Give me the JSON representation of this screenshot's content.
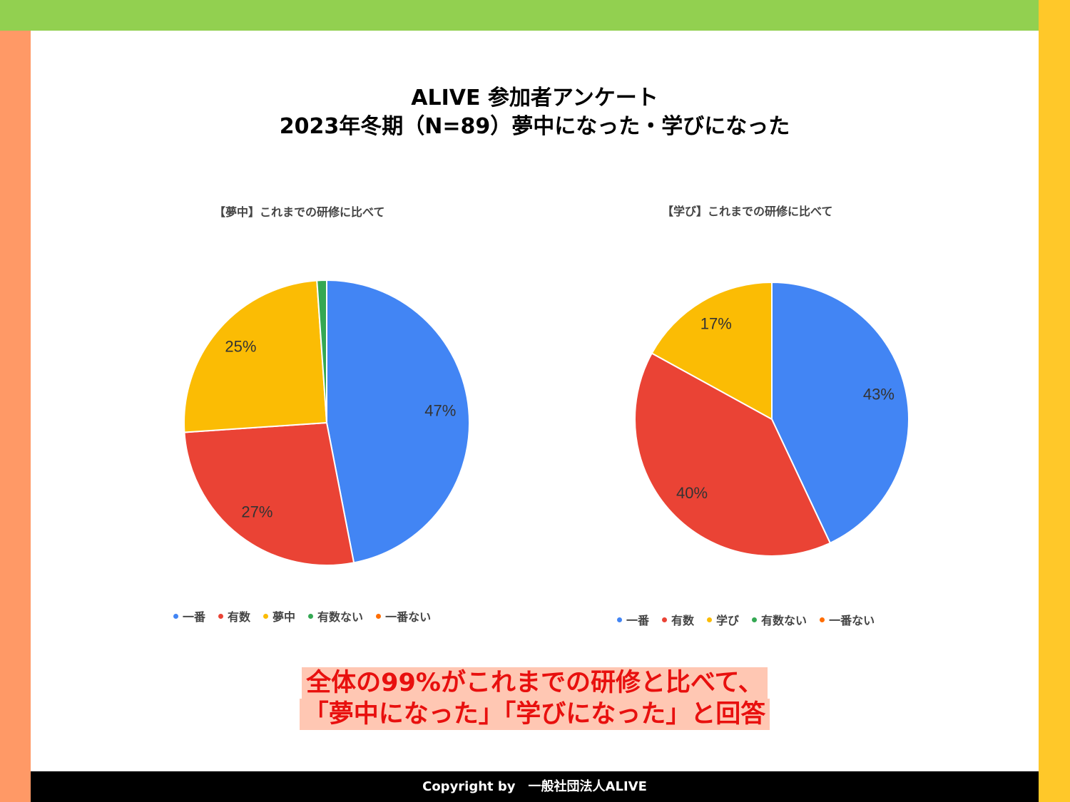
{
  "slide": {
    "title_line1": "ALIVE 参加者アンケート",
    "title_line2": "2023年冬期（N=89）夢中になった・学びになった",
    "callout_line1": "全体の99%がこれまでの研修と比べて、",
    "callout_line2": "「夢中になった」「学びになった」と回答",
    "footer": "Copyright by　一般社団法人ALIVE"
  },
  "chart_data": [
    {
      "type": "pie",
      "title": "【夢中】これまでの研修に比べて",
      "categories": [
        "一番",
        "有数",
        "夢中",
        "有数ない",
        "一番ない"
      ],
      "values": [
        47,
        27,
        25,
        1.1,
        0
      ],
      "labels": [
        "47%",
        "27%",
        "25%",
        "",
        ""
      ],
      "colors": [
        "#4285f4",
        "#ea4335",
        "#fbbc04",
        "#34a853",
        "#ff6d01"
      ],
      "legend_position": "bottom"
    },
    {
      "type": "pie",
      "title": "【学び】これまでの研修に比べて",
      "categories": [
        "一番",
        "有数",
        "学び",
        "有数ない",
        "一番ない"
      ],
      "values": [
        43,
        40,
        17,
        0,
        0
      ],
      "labels": [
        "43%",
        "40%",
        "17%",
        "",
        ""
      ],
      "colors": [
        "#4285f4",
        "#ea4335",
        "#fbbc04",
        "#34a853",
        "#ff6d01"
      ],
      "legend_position": "bottom"
    }
  ]
}
